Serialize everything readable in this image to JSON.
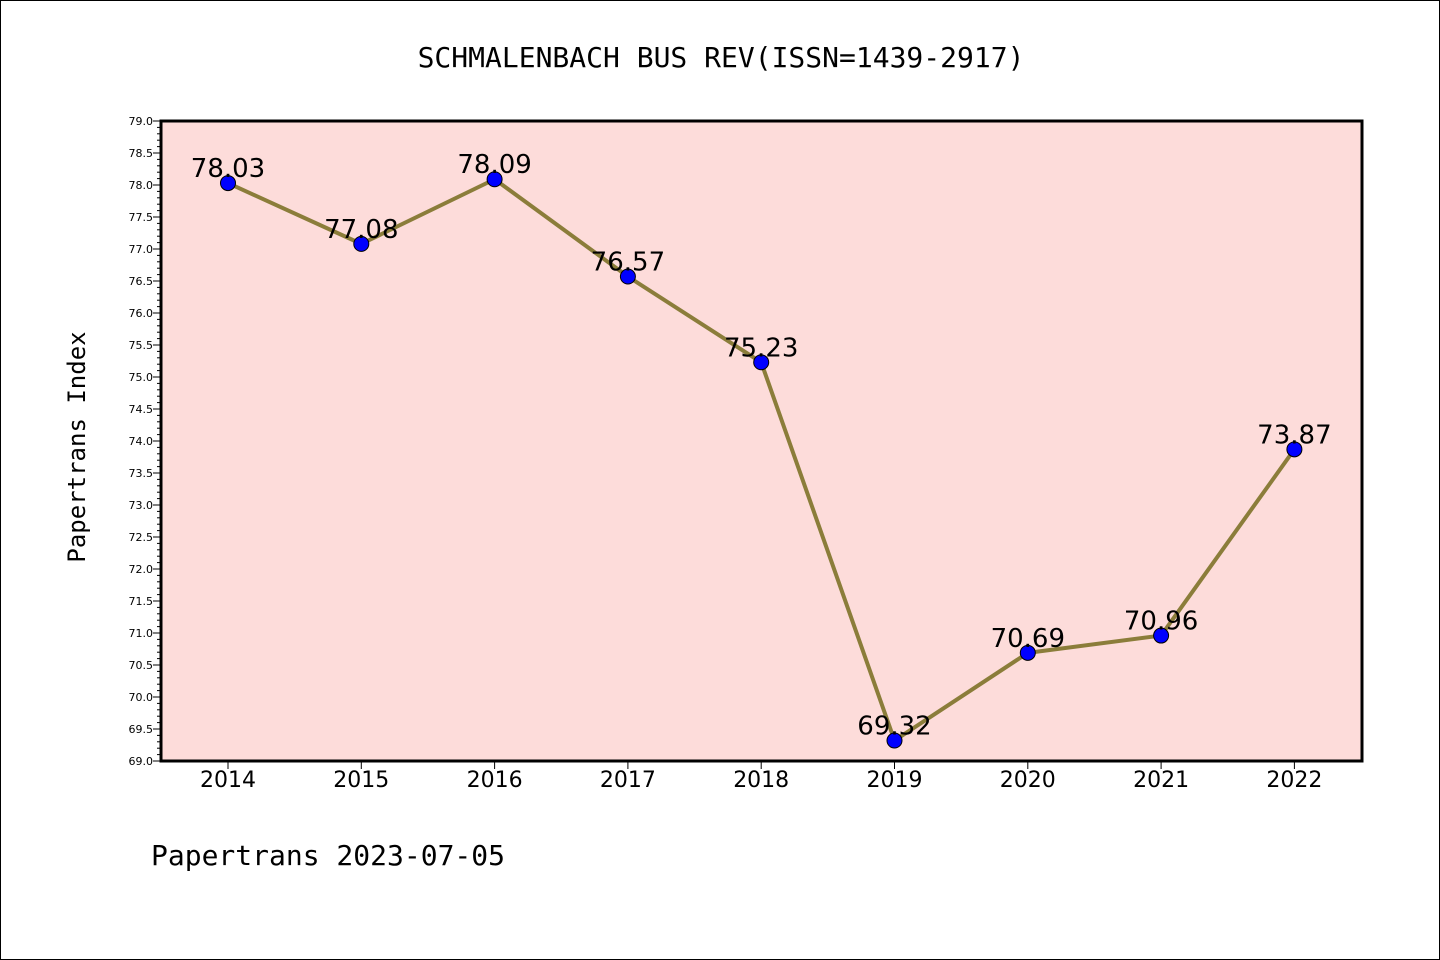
{
  "chart_data": {
    "type": "line",
    "title": "SCHMALENBACH BUS REV(ISSN=1439-2917)",
    "ylabel": "Papertrans Index",
    "xlabel": "",
    "footer": "Papertrans 2023-07-05",
    "categories": [
      "2014",
      "2015",
      "2016",
      "2017",
      "2018",
      "2019",
      "2020",
      "2021",
      "2022"
    ],
    "series": [
      {
        "values": [
          78.03,
          77.08,
          78.09,
          76.57,
          75.23,
          69.32,
          70.69,
          70.96,
          73.87
        ],
        "labels": [
          "78.03",
          "77.08",
          "78.09",
          "76.57",
          "75.23",
          "69.32",
          "70.69",
          "70.96",
          "73.87"
        ]
      }
    ],
    "ylim": [
      69.0,
      79.0
    ],
    "yticks": [
      "69.0",
      "69.5",
      "70.0",
      "70.5",
      "71.0",
      "71.5",
      "72.0",
      "72.5",
      "73.0",
      "73.5",
      "74.0",
      "74.5",
      "75.0",
      "75.5",
      "76.0",
      "76.5",
      "77.0",
      "77.5",
      "78.0",
      "78.5",
      "79.0"
    ],
    "grid": false,
    "colors": {
      "plot_background": "#fddcda",
      "line": "#8b7d3a",
      "marker": "#0000ff"
    }
  }
}
